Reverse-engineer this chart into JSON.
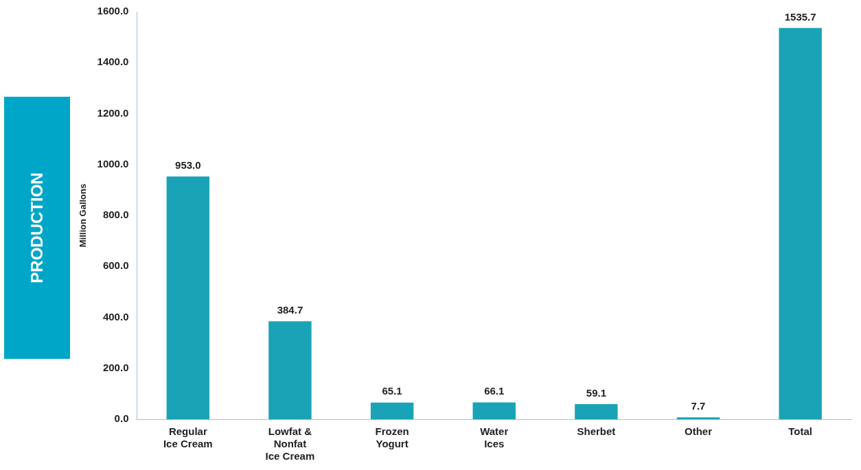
{
  "chart_data": {
    "type": "bar",
    "title": "PRODUCTION",
    "ylabel": "Million Gallons",
    "categories": [
      "Regular Ice Cream",
      "Lowfat & Nonfat Ice Cream",
      "Frozen Yogurt",
      "Water Ices",
      "Sherbet",
      "Other",
      "Total"
    ],
    "values": [
      953.0,
      384.7,
      65.1,
      66.1,
      59.1,
      7.7,
      1535.7
    ],
    "value_labels": [
      "953.0",
      "384.7",
      "65.1",
      "66.1",
      "59.1",
      "7.7",
      "1535.7"
    ],
    "color": "#1aa3b6",
    "ylim": [
      0,
      1600
    ],
    "yticks": [
      {
        "value": 0,
        "label": "0.0"
      },
      {
        "value": 200,
        "label": "200.0"
      },
      {
        "value": 400,
        "label": "400.0"
      },
      {
        "value": 600,
        "label": "600.0"
      },
      {
        "value": 800,
        "label": "800.0"
      },
      {
        "value": 1000,
        "label": "1000.0"
      },
      {
        "value": 1200,
        "label": "1200.0"
      },
      {
        "value": 1400,
        "label": "1400.0"
      },
      {
        "value": 1600,
        "label": "1600.0"
      }
    ],
    "grid": false
  }
}
